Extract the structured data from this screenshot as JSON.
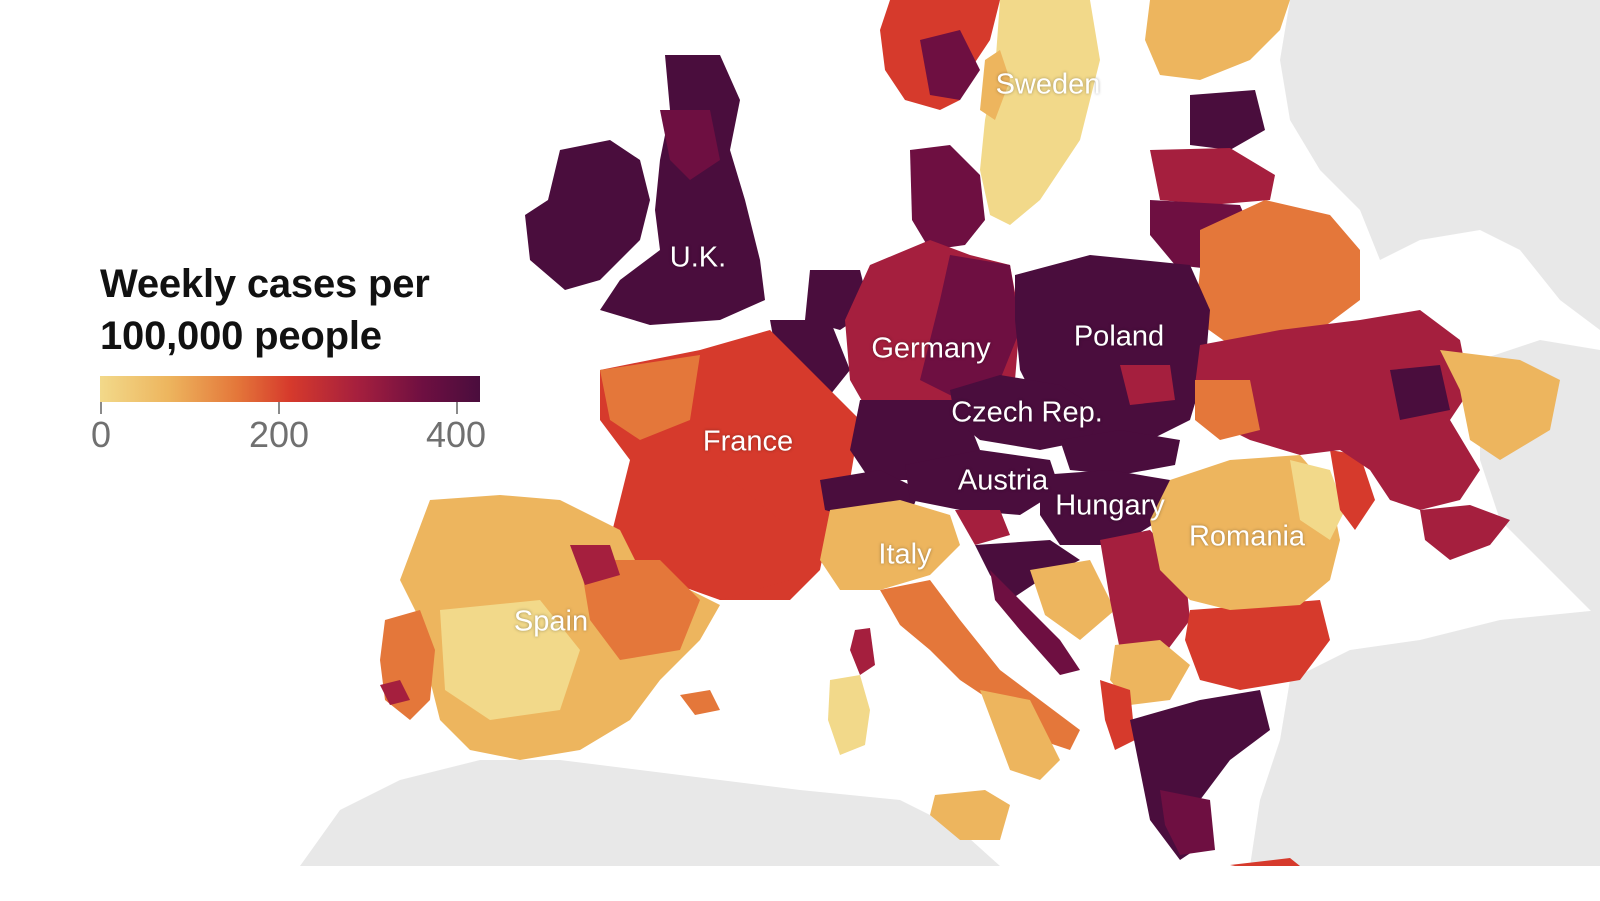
{
  "legend": {
    "title_line1": "Weekly cases per",
    "title_line2": "100,000 people",
    "ticks": [
      "0",
      "200",
      "400"
    ],
    "scale_min": 0,
    "scale_max": 430,
    "colors": [
      "#f2d98a",
      "#edb55e",
      "#e4773a",
      "#d63a2c",
      "#a51f3e",
      "#6e0f41",
      "#4a0d3d"
    ]
  },
  "labels": {
    "uk": "U.K.",
    "sweden": "Sweden",
    "germany": "Germany",
    "poland": "Poland",
    "czech": "Czech Rep.",
    "france": "France",
    "austria": "Austria",
    "hungary": "Hungary",
    "romania": "Romania",
    "italy": "Italy",
    "spain": "Spain"
  },
  "colors": {
    "land_outside": "#e8e8e8",
    "sea": "#ffffff",
    "level_0_50": "#f2d98a",
    "level_50_100": "#edb55e",
    "level_100_150": "#e4773a",
    "level_150_200": "#d63a2c",
    "level_200_300": "#a51f3e",
    "level_300_400": "#6e0f41",
    "level_400_plus": "#4a0d3d"
  }
}
